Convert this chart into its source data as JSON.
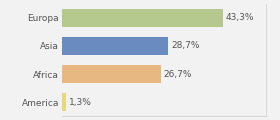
{
  "categories": [
    "Europa",
    "Asia",
    "Africa",
    "America"
  ],
  "values": [
    43.3,
    28.7,
    26.7,
    1.3
  ],
  "labels": [
    "43,3%",
    "28,7%",
    "26,7%",
    "1,3%"
  ],
  "bar_colors": [
    "#b5c98e",
    "#6a8bbf",
    "#e8b882",
    "#e8d87a"
  ],
  "background_color": "#f2f2f2",
  "xlim": [
    0,
    55
  ],
  "label_fontsize": 6.5,
  "tick_fontsize": 6.5,
  "bar_height": 0.65
}
